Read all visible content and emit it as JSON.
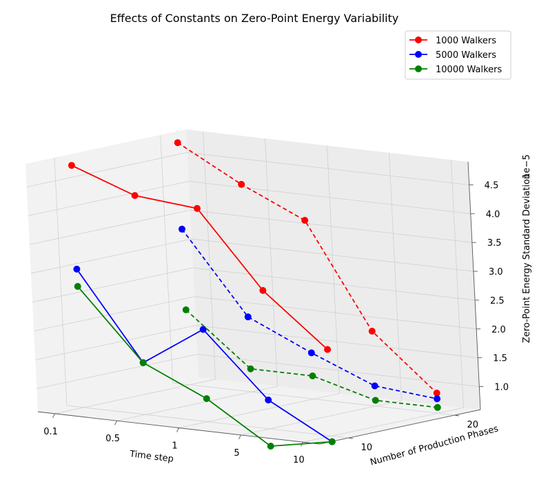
{
  "chart_data": {
    "type": "line",
    "projection": "3d",
    "title": "Effects of Constants on Zero-Point Energy Variability",
    "xlabel": "Time step",
    "ylabel": "Number of Production Phases",
    "zlabel": "Zero-Point Energy Standard Deviation",
    "z_offset_label": "1e−5",
    "x_categories": [
      "0.1",
      "0.5",
      "1",
      "5",
      "10"
    ],
    "y_ticks": [
      "10",
      "20"
    ],
    "z_ticks": [
      "1.0",
      "1.5",
      "2.0",
      "2.5",
      "3.0",
      "3.5",
      "4.0",
      "4.5"
    ],
    "zlim": [
      0.6,
      4.9
    ],
    "legend_position": "top-right",
    "series": [
      {
        "name": "1000 Walkers",
        "color": "#ff0000",
        "production_phases": 10,
        "linestyle": "solid",
        "values": [
          4.8,
          4.4,
          4.3,
          3.0,
          2.1
        ]
      },
      {
        "name": "1000 Walkers",
        "color": "#ff0000",
        "production_phases": 20,
        "linestyle": "dashed",
        "values": [
          4.8,
          4.2,
          3.7,
          1.9,
          0.95
        ]
      },
      {
        "name": "5000 Walkers",
        "color": "#0000ff",
        "production_phases": 10,
        "linestyle": "solid",
        "values": [
          3.0,
          1.5,
          2.2,
          1.1,
          0.5
        ]
      },
      {
        "name": "5000 Walkers",
        "color": "#0000ff",
        "production_phases": 20,
        "linestyle": "dashed",
        "values": [
          3.3,
          1.9,
          1.4,
          0.95,
          0.85
        ]
      },
      {
        "name": "10000 Walkers",
        "color": "#008000",
        "production_phases": 10,
        "linestyle": "solid",
        "values": [
          2.7,
          1.5,
          1.0,
          0.3,
          0.5
        ]
      },
      {
        "name": "10000 Walkers",
        "color": "#008000",
        "production_phases": 20,
        "linestyle": "dashed",
        "values": [
          1.9,
          1.0,
          1.0,
          0.7,
          0.7
        ]
      }
    ],
    "legend": [
      {
        "label": "1000 Walkers",
        "color": "#ff0000"
      },
      {
        "label": "5000 Walkers",
        "color": "#0000ff"
      },
      {
        "label": "10000 Walkers",
        "color": "#008000"
      }
    ]
  }
}
